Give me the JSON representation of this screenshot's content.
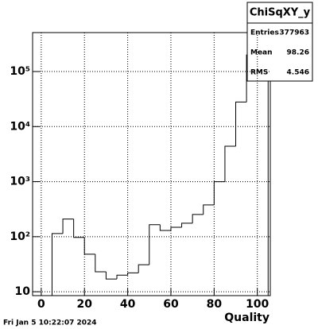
{
  "chart_data": {
    "type": "histogram",
    "x_label": "Quality",
    "log_y": true,
    "grid": true,
    "color": "#000000",
    "bins": [
      5,
      10,
      15,
      20,
      25,
      30,
      35,
      40,
      45,
      50,
      55,
      60,
      65,
      70,
      75,
      80,
      85,
      90,
      95,
      100,
      105
    ],
    "values": [
      114,
      209,
      97,
      48,
      23,
      17,
      20,
      22,
      31,
      165,
      130,
      148,
      176,
      253,
      378,
      1000,
      4400,
      28000,
      200000,
      110000
    ],
    "xlim": [
      -4,
      106
    ],
    "xticks": [
      0,
      20,
      40,
      60,
      80,
      100
    ],
    "ylim": [
      8.5,
      510000
    ],
    "yticks": [
      {
        "value": 10,
        "label": "10"
      },
      {
        "value": 100,
        "label": "10²"
      },
      {
        "value": 1000,
        "label": "10³"
      },
      {
        "value": 10000,
        "label": "10⁴"
      },
      {
        "value": 100000,
        "label": "10⁵"
      }
    ],
    "stats": {
      "title": "ChiSqXY_y",
      "entries_label": "Entries",
      "entries": 377963,
      "mean_label": "Mean",
      "mean": 98.26,
      "rms_label": "RMS",
      "rms": 4.546
    }
  },
  "footer": "Fri Jan  5 10:22:07 2024"
}
